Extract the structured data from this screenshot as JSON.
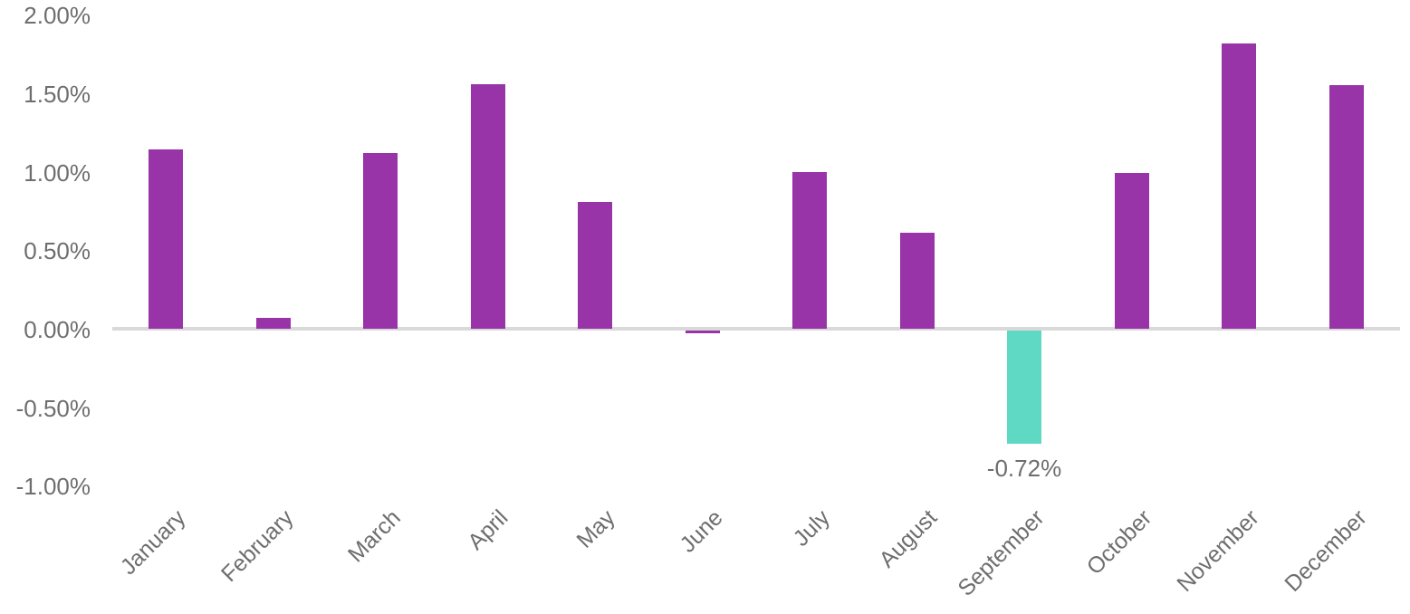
{
  "chart_data": {
    "type": "bar",
    "title": "",
    "xlabel": "",
    "ylabel": "",
    "categories": [
      "January",
      "February",
      "March",
      "April",
      "May",
      "June",
      "July",
      "August",
      "September",
      "October",
      "November",
      "December"
    ],
    "values": [
      1.14,
      0.07,
      1.12,
      1.56,
      0.81,
      -0.02,
      1.0,
      0.61,
      -0.72,
      0.99,
      1.82,
      1.55
    ],
    "unit": "%",
    "bar_colors": [
      "#9833A8",
      "#9833A8",
      "#9833A8",
      "#9833A8",
      "#9833A8",
      "#9833A8",
      "#9833A8",
      "#9833A8",
      "#5FD9C4",
      "#9833A8",
      "#9833A8",
      "#9833A8"
    ],
    "data_labels": [
      {
        "index": 8,
        "text": "-0.72%"
      }
    ],
    "yticks": [
      2.0,
      1.5,
      1.0,
      0.5,
      0.0,
      -0.5,
      -1.0
    ],
    "ytick_labels": [
      "2.00%",
      "1.50%",
      "1.00%",
      "0.50%",
      "0.00%",
      "-0.50%",
      "-1.00%"
    ],
    "ylim": [
      -1.0,
      2.0
    ],
    "grid": "none",
    "legend": "none",
    "axis_line_color": "#D9D9D9",
    "text_color": "#6E6E6E",
    "x_label_rotation_deg": -45
  }
}
